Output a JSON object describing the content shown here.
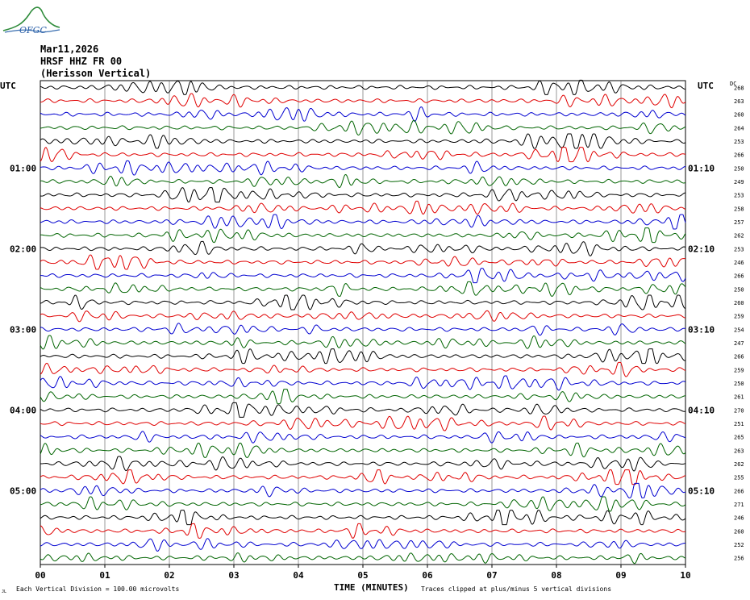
{
  "header": {
    "logo_text": "OFGC",
    "date": "Mar11,2026",
    "station": "HRSF HHZ FR 00",
    "location": "(Herisson Vertical)"
  },
  "left_axis_label": "UTC",
  "right_axis_label": "UTC",
  "dc_label": "DC",
  "chart_data": {
    "type": "line",
    "title": "HRSF HHZ FR 00 (Herisson Vertical)",
    "xlabel": "TIME (MINUTES)",
    "ylabel": "UTC",
    "x_ticks": [
      "00",
      "01",
      "02",
      "03",
      "04",
      "05",
      "06",
      "07",
      "08",
      "09",
      "10"
    ],
    "xlim": [
      0,
      10
    ],
    "left_time_labels": [
      {
        "row": 6,
        "label": "01:00"
      },
      {
        "row": 12,
        "label": "02:00"
      },
      {
        "row": 18,
        "label": "03:00"
      },
      {
        "row": 24,
        "label": "04:00"
      },
      {
        "row": 30,
        "label": "05:00"
      }
    ],
    "right_time_labels": [
      {
        "row": 6,
        "label": "01:10"
      },
      {
        "row": 12,
        "label": "02:10"
      },
      {
        "row": 18,
        "label": "03:10"
      },
      {
        "row": 24,
        "label": "04:10"
      },
      {
        "row": 30,
        "label": "05:10"
      }
    ],
    "trace_colors": [
      "#000000",
      "#e00000",
      "#0000d0",
      "#006400"
    ],
    "dc_offsets": [
      268,
      263,
      260,
      264,
      253,
      266,
      250,
      249,
      253,
      258,
      257,
      262,
      253,
      246,
      266,
      250,
      260,
      259,
      254,
      247,
      266,
      259,
      250,
      261,
      270,
      251,
      265,
      263,
      262,
      255,
      266,
      271,
      246,
      260,
      252,
      256
    ],
    "grid": true
  },
  "footer": {
    "scale_note": "Each Vertical Division =  100.00 microvolts",
    "clip_note": "Traces clipped at plus/minus 5 vertical divisions",
    "corner_mark": "JL"
  }
}
